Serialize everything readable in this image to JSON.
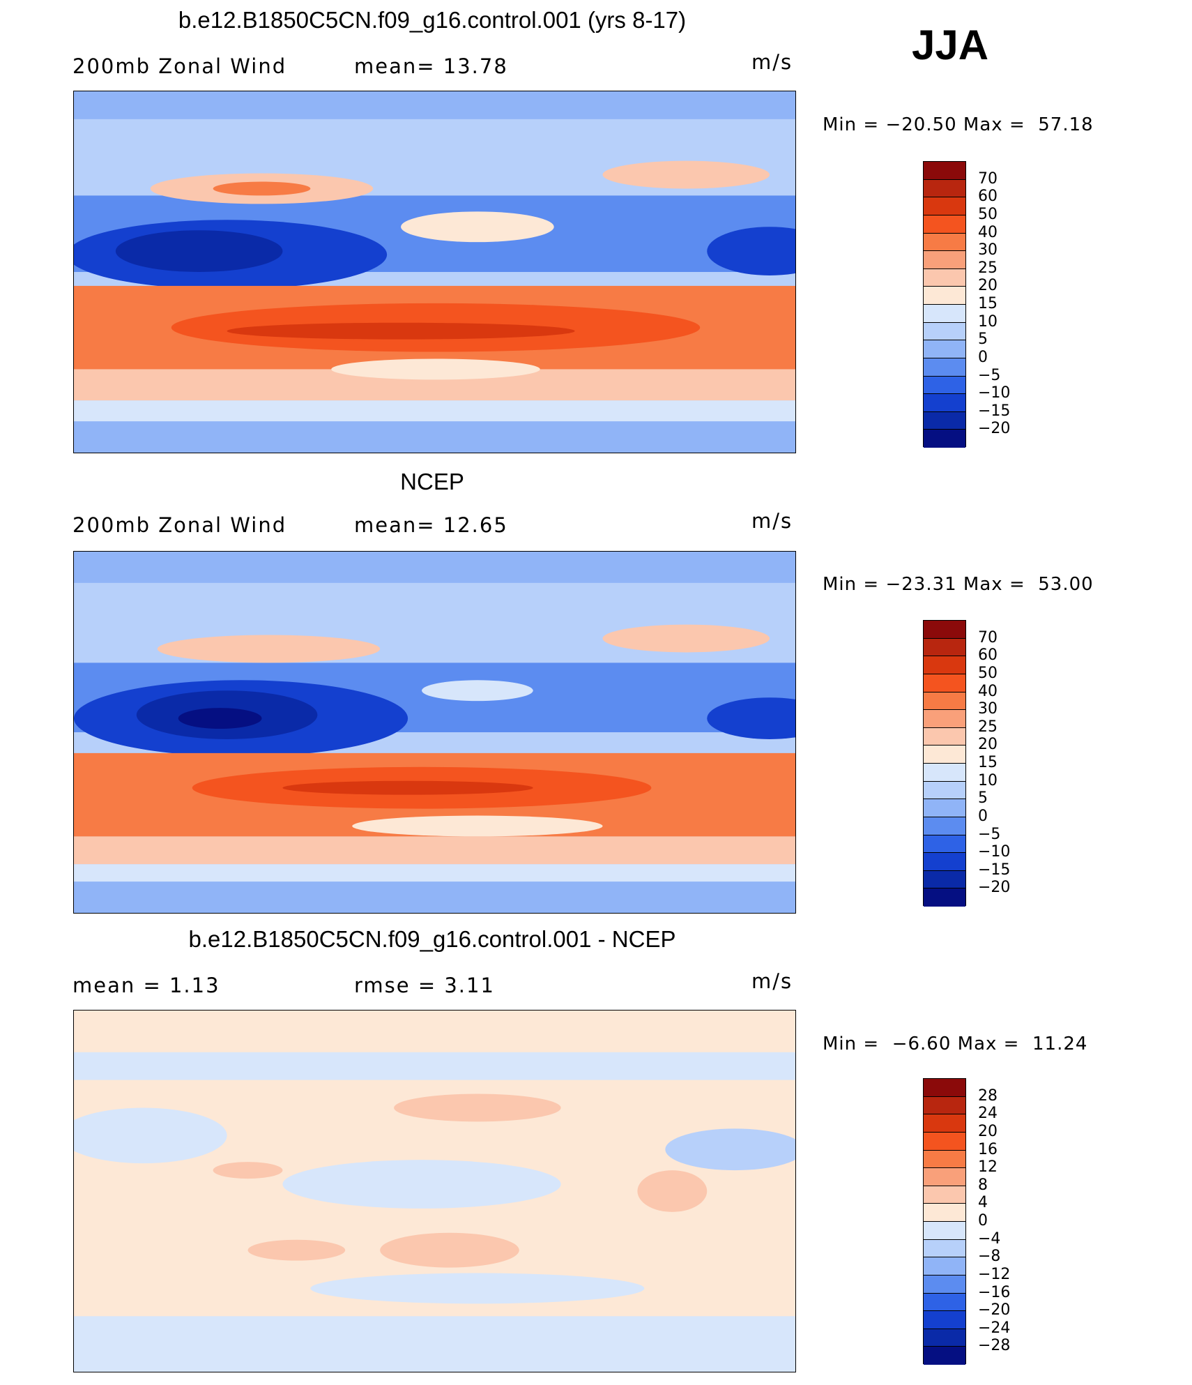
{
  "season": "JJA",
  "panels": [
    {
      "title": "b.e12.B1850C5CN.f09_g16.control.001 (yrs 8-17)",
      "left_label": "200mb Zonal Wind",
      "mid_label": "mean=  13.78",
      "units": "m/s",
      "minmax": "Min = −20.50 Max =  57.18",
      "colorbar": "main"
    },
    {
      "title": "NCEP",
      "left_label": "200mb Zonal Wind",
      "mid_label": "mean=  12.65",
      "units": "m/s",
      "minmax": "Min = −23.31 Max =  53.00",
      "colorbar": "main"
    },
    {
      "title": "b.e12.B1850C5CN.f09_g16.control.001 - NCEP",
      "left_label": "mean =   1.13",
      "mid_label": "rmse =   3.11",
      "units": "m/s",
      "minmax": "Min =  −6.60 Max =  11.24",
      "colorbar": "diff"
    }
  ],
  "colorbars": {
    "main": {
      "labels": [
        "70",
        "60",
        "50",
        "40",
        "30",
        "25",
        "20",
        "15",
        "10",
        "5",
        "0",
        "−5",
        "−10",
        "−15",
        "−20"
      ],
      "colors": [
        "#8b0a0a",
        "#b8260f",
        "#d9380f",
        "#f4541f",
        "#f77b45",
        "#f9a07a",
        "#fbc7ae",
        "#fde8d6",
        "#d7e6fb",
        "#b7d0fa",
        "#90b4f7",
        "#5c8cf0",
        "#2e62e6",
        "#1440cf",
        "#0a2aa8",
        "#050f82"
      ]
    },
    "diff": {
      "labels": [
        "28",
        "24",
        "20",
        "16",
        "12",
        "8",
        "4",
        "0",
        "−4",
        "−8",
        "−12",
        "−16",
        "−20",
        "−24",
        "−28"
      ],
      "colors": [
        "#8b0a0a",
        "#b8260f",
        "#d9380f",
        "#f4541f",
        "#f77b45",
        "#f9a07a",
        "#fbc7ae",
        "#fde8d6",
        "#d7e6fb",
        "#b7d0fa",
        "#90b4f7",
        "#5c8cf0",
        "#2e62e6",
        "#1440cf",
        "#0a2aa8",
        "#050f82"
      ]
    }
  }
}
